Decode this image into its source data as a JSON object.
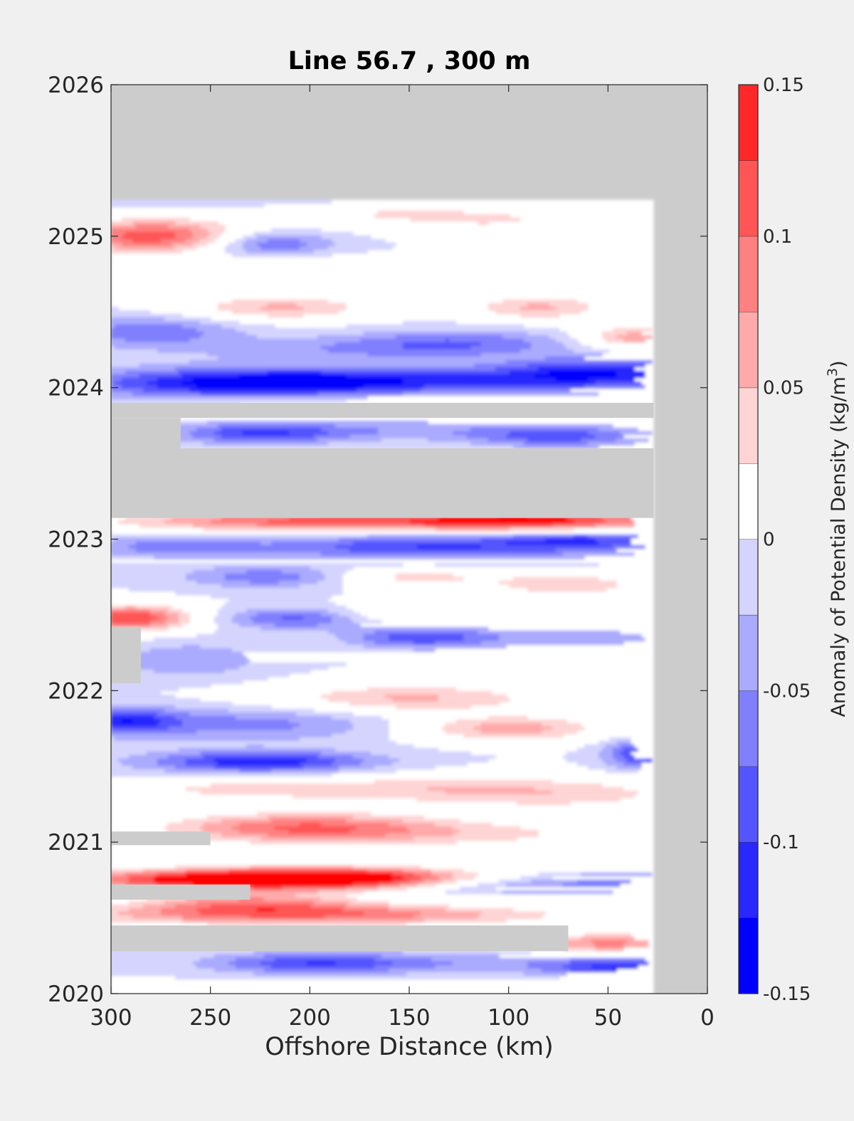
{
  "chart_data": {
    "type": "heatmap",
    "title": "Line 56.7 , 300 m",
    "xlabel": "Offshore Distance (km)",
    "ylabel": "",
    "xlim": [
      300,
      0
    ],
    "x_reversed": true,
    "ylim": [
      2020,
      2026
    ],
    "x_ticks": [
      "300",
      "250",
      "200",
      "150",
      "100",
      "50",
      "0"
    ],
    "y_ticks": [
      "2020",
      "2021",
      "2022",
      "2023",
      "2024",
      "2025",
      "2026"
    ],
    "colorbar": {
      "label": "Anomaly of Potential Density",
      "unit_base": "kg/m",
      "unit_exp": "3",
      "ticks": [
        "-0.15",
        "-0.1",
        "-0.05",
        "0",
        "0.05",
        "0.1",
        "0.15"
      ],
      "range": [
        -0.15,
        0.15
      ],
      "levels": [
        -0.15,
        -0.125,
        -0.1,
        -0.075,
        -0.05,
        -0.025,
        0,
        0.025,
        0.05,
        0.075,
        0.1,
        0.125,
        0.15
      ],
      "colors": [
        "#0000ff",
        "#2828ff",
        "#5555ff",
        "#8080ff",
        "#aaaaff",
        "#d4d4ff",
        "#ffffff",
        "#ffffff",
        "#ffd4d4",
        "#ffaaaa",
        "#ff8080",
        "#ff5555",
        "#ff2828",
        "#ff0000"
      ]
    },
    "no_data_color": "#cccccc",
    "data_coverage": {
      "x_range": [
        27,
        300
      ],
      "y_range": [
        2019.96,
        2025.24
      ],
      "gaps": [
        {
          "x": [
            27,
            300
          ],
          "y": [
            2023.14,
            2023.6
          ]
        },
        {
          "x": [
            27,
            300
          ],
          "y": [
            2023.8,
            2023.9
          ]
        },
        {
          "x": [
            265,
            300
          ],
          "y": [
            2023.6,
            2023.8
          ]
        },
        {
          "x": [
            70,
            300
          ],
          "y": [
            2020.28,
            2020.45
          ]
        },
        {
          "x": [
            230,
            300
          ],
          "y": [
            2020.62,
            2020.72
          ]
        },
        {
          "x": [
            250,
            300
          ],
          "y": [
            2020.98,
            2021.07
          ]
        },
        {
          "x": [
            285,
            300
          ],
          "y": [
            2022.05,
            2022.42
          ]
        }
      ]
    },
    "anomaly_features": [
      {
        "x": 280,
        "y": 2025.0,
        "v": 0.14,
        "sx": 32,
        "sy": 0.08
      },
      {
        "x": 220,
        "y": 2025.25,
        "v": -0.04,
        "sx": 70,
        "sy": 0.05
      },
      {
        "x": 170,
        "y": 2025.17,
        "v": 0.05,
        "sx": 50,
        "sy": 0.07
      },
      {
        "x": 100,
        "y": 2025.1,
        "v": 0.04,
        "sx": 40,
        "sy": 0.06
      },
      {
        "x": 220,
        "y": 2024.95,
        "v": -0.08,
        "sx": 22,
        "sy": 0.06
      },
      {
        "x": 195,
        "y": 2024.8,
        "v": 0.04,
        "sx": 35,
        "sy": 0.05
      },
      {
        "x": 40,
        "y": 2024.95,
        "v": 0.04,
        "sx": 25,
        "sy": 0.05
      },
      {
        "x": 215,
        "y": 2024.53,
        "v": 0.08,
        "sx": 35,
        "sy": 0.06
      },
      {
        "x": 85,
        "y": 2024.53,
        "v": 0.08,
        "sx": 26,
        "sy": 0.06
      },
      {
        "x": 38,
        "y": 2024.33,
        "v": 0.09,
        "sx": 18,
        "sy": 0.06
      },
      {
        "x": 45,
        "y": 2024.7,
        "v": 0.05,
        "sx": 20,
        "sy": 0.05
      },
      {
        "x": 280,
        "y": 2024.37,
        "v": -0.07,
        "sx": 30,
        "sy": 0.07
      },
      {
        "x": 125,
        "y": 2024.3,
        "v": -0.06,
        "sx": 40,
        "sy": 0.06
      },
      {
        "x": 180,
        "y": 2024.25,
        "v": -0.04,
        "sx": 60,
        "sy": 0.06
      },
      {
        "x": 230,
        "y": 2024.03,
        "v": -0.14,
        "sx": 60,
        "sy": 0.07
      },
      {
        "x": 130,
        "y": 2024.05,
        "v": -0.07,
        "sx": 60,
        "sy": 0.06
      },
      {
        "x": 55,
        "y": 2024.1,
        "v": -0.11,
        "sx": 35,
        "sy": 0.07
      },
      {
        "x": 180,
        "y": 2023.9,
        "v": 0.03,
        "sx": 60,
        "sy": 0.04
      },
      {
        "x": 225,
        "y": 2023.7,
        "v": -0.1,
        "sx": 30,
        "sy": 0.05
      },
      {
        "x": 75,
        "y": 2023.68,
        "v": -0.09,
        "sx": 30,
        "sy": 0.05
      },
      {
        "x": 150,
        "y": 2023.72,
        "v": -0.04,
        "sx": 40,
        "sy": 0.05
      },
      {
        "x": 200,
        "y": 2023.12,
        "v": 0.13,
        "sx": 70,
        "sy": 0.05
      },
      {
        "x": 80,
        "y": 2023.12,
        "v": 0.14,
        "sx": 50,
        "sy": 0.05
      },
      {
        "x": 140,
        "y": 2022.95,
        "v": -0.1,
        "sx": 60,
        "sy": 0.06
      },
      {
        "x": 60,
        "y": 2023.0,
        "v": -0.08,
        "sx": 30,
        "sy": 0.05
      },
      {
        "x": 270,
        "y": 2022.95,
        "v": -0.06,
        "sx": 30,
        "sy": 0.05
      },
      {
        "x": 220,
        "y": 2022.75,
        "v": -0.07,
        "sx": 30,
        "sy": 0.05
      },
      {
        "x": 150,
        "y": 2022.75,
        "v": 0.06,
        "sx": 30,
        "sy": 0.05
      },
      {
        "x": 70,
        "y": 2022.7,
        "v": 0.07,
        "sx": 30,
        "sy": 0.06
      },
      {
        "x": 290,
        "y": 2022.48,
        "v": 0.15,
        "sx": 22,
        "sy": 0.06
      },
      {
        "x": 205,
        "y": 2022.48,
        "v": -0.1,
        "sx": 26,
        "sy": 0.05
      },
      {
        "x": 145,
        "y": 2022.35,
        "v": -0.09,
        "sx": 25,
        "sy": 0.05
      },
      {
        "x": 160,
        "y": 2022.5,
        "v": 0.05,
        "sx": 40,
        "sy": 0.05
      },
      {
        "x": 70,
        "y": 2022.35,
        "v": -0.04,
        "sx": 40,
        "sy": 0.05
      },
      {
        "x": 260,
        "y": 2022.2,
        "v": -0.05,
        "sx": 25,
        "sy": 0.08
      },
      {
        "x": 150,
        "y": 2021.95,
        "v": 0.08,
        "sx": 50,
        "sy": 0.07
      },
      {
        "x": 100,
        "y": 2021.75,
        "v": 0.09,
        "sx": 35,
        "sy": 0.06
      },
      {
        "x": 230,
        "y": 2021.78,
        "v": -0.06,
        "sx": 50,
        "sy": 0.08
      },
      {
        "x": 295,
        "y": 2021.8,
        "v": -0.1,
        "sx": 20,
        "sy": 0.06
      },
      {
        "x": 40,
        "y": 2021.9,
        "v": 0.04,
        "sx": 25,
        "sy": 0.05
      },
      {
        "x": 30,
        "y": 2021.58,
        "v": -0.12,
        "sx": 14,
        "sy": 0.07
      },
      {
        "x": 225,
        "y": 2021.53,
        "v": -0.12,
        "sx": 40,
        "sy": 0.05
      },
      {
        "x": 240,
        "y": 2021.35,
        "v": 0.05,
        "sx": 50,
        "sy": 0.05
      },
      {
        "x": 130,
        "y": 2021.35,
        "v": 0.06,
        "sx": 60,
        "sy": 0.07
      },
      {
        "x": 60,
        "y": 2021.3,
        "v": 0.04,
        "sx": 50,
        "sy": 0.08
      },
      {
        "x": 205,
        "y": 2021.1,
        "v": 0.11,
        "sx": 50,
        "sy": 0.07
      },
      {
        "x": 120,
        "y": 2021.05,
        "v": 0.05,
        "sx": 80,
        "sy": 0.07
      },
      {
        "x": 235,
        "y": 2020.75,
        "v": 0.15,
        "sx": 70,
        "sy": 0.05
      },
      {
        "x": 190,
        "y": 2020.77,
        "v": 0.12,
        "sx": 55,
        "sy": 0.05
      },
      {
        "x": 100,
        "y": 2020.72,
        "v": -0.06,
        "sx": 40,
        "sy": 0.05
      },
      {
        "x": 45,
        "y": 2020.75,
        "v": -0.04,
        "sx": 25,
        "sy": 0.05
      },
      {
        "x": 200,
        "y": 2020.52,
        "v": 0.12,
        "sx": 90,
        "sy": 0.05
      },
      {
        "x": 230,
        "y": 2020.6,
        "v": 0.09,
        "sx": 40,
        "sy": 0.05
      },
      {
        "x": 50,
        "y": 2020.33,
        "v": 0.11,
        "sx": 25,
        "sy": 0.05
      },
      {
        "x": 200,
        "y": 2020.2,
        "v": -0.08,
        "sx": 35,
        "sy": 0.05
      },
      {
        "x": 120,
        "y": 2020.2,
        "v": -0.04,
        "sx": 70,
        "sy": 0.05
      },
      {
        "x": 45,
        "y": 2020.17,
        "v": -0.09,
        "sx": 25,
        "sy": 0.05
      },
      {
        "x": 220,
        "y": 2020.02,
        "v": 0.04,
        "sx": 70,
        "sy": 0.04
      }
    ]
  }
}
